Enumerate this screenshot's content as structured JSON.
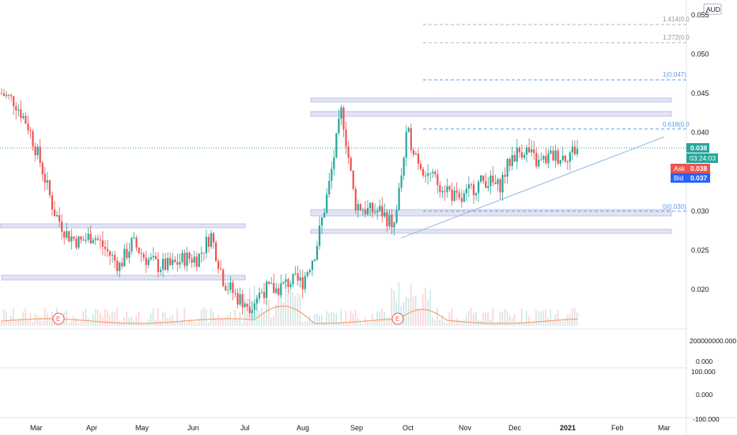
{
  "currency_label": "AUD",
  "colors": {
    "up": "#26a69a",
    "down": "#ef5350",
    "fib": "#5d9cec",
    "fib_grey": "#b2b5be",
    "zone": "#c5cae9",
    "volume_ma": "#f7a072",
    "trend": "#90b8e8",
    "ask": "#ef5350",
    "bid": "#2962ff",
    "last": "#26a69a"
  },
  "price_axis": {
    "ticks": [
      "0.055",
      "0.050",
      "0.045",
      "0.040",
      "0.035",
      "0.030",
      "0.025",
      "0.020"
    ],
    "min": 0.015,
    "max": 0.055
  },
  "indicator_axes": {
    "volume_tick": "200000000.000",
    "osc_ticks": [
      "0.000",
      "100.000",
      "0.000",
      "-100.000"
    ]
  },
  "time_axis": {
    "labels": [
      "Mar",
      "Apr",
      "May",
      "Jun",
      "Jul",
      "Aug",
      "Sep",
      "Oct",
      "Nov",
      "Dec",
      "2021",
      "Feb",
      "Mar"
    ]
  },
  "badges": {
    "last_price": "0.038",
    "countdown": "03:24:03",
    "ask_label": "Ask",
    "ask_value": "0.038",
    "bid_label": "Bid",
    "bid_value": "0.037"
  },
  "fib_labels": {
    "l1414": "1.414(0.0",
    "l1272": "1.272(0.0",
    "l1": "1(0.047)",
    "l0618": "0.618(0.0",
    "l0": "0(0.030)"
  },
  "event_marker": "E",
  "chart_data": {
    "type": "candlestick",
    "x": [
      "Feb",
      "Feb",
      "Feb",
      "Mar",
      "Mar",
      "Mar",
      "Mar",
      "Apr",
      "Apr",
      "Apr",
      "Apr",
      "May",
      "May",
      "May",
      "May",
      "Jun",
      "Jun",
      "Jun",
      "Jun",
      "Jul",
      "Jul",
      "Jul",
      "Jul",
      "Aug",
      "Aug",
      "Aug",
      "Aug",
      "Sep",
      "Sep",
      "Sep",
      "Sep",
      "Oct",
      "Oct",
      "Oct",
      "Oct",
      "Nov",
      "Nov",
      "Nov",
      "Nov",
      "Dec",
      "Dec",
      "Dec",
      "Dec",
      "Jan",
      "Jan"
    ],
    "close": [
      0.045,
      0.044,
      0.041,
      0.036,
      0.03,
      0.027,
      0.026,
      0.027,
      0.025,
      0.023,
      0.026,
      0.024,
      0.023,
      0.023,
      0.024,
      0.024,
      0.027,
      0.021,
      0.019,
      0.018,
      0.02,
      0.02,
      0.021,
      0.021,
      0.025,
      0.033,
      0.043,
      0.031,
      0.03,
      0.03,
      0.028,
      0.04,
      0.036,
      0.034,
      0.033,
      0.031,
      0.033,
      0.034,
      0.033,
      0.037,
      0.038,
      0.036,
      0.037,
      0.037,
      0.038
    ],
    "volume_ma_note": "volume MA line shown under price",
    "ylim": [
      0.015,
      0.055
    ]
  }
}
